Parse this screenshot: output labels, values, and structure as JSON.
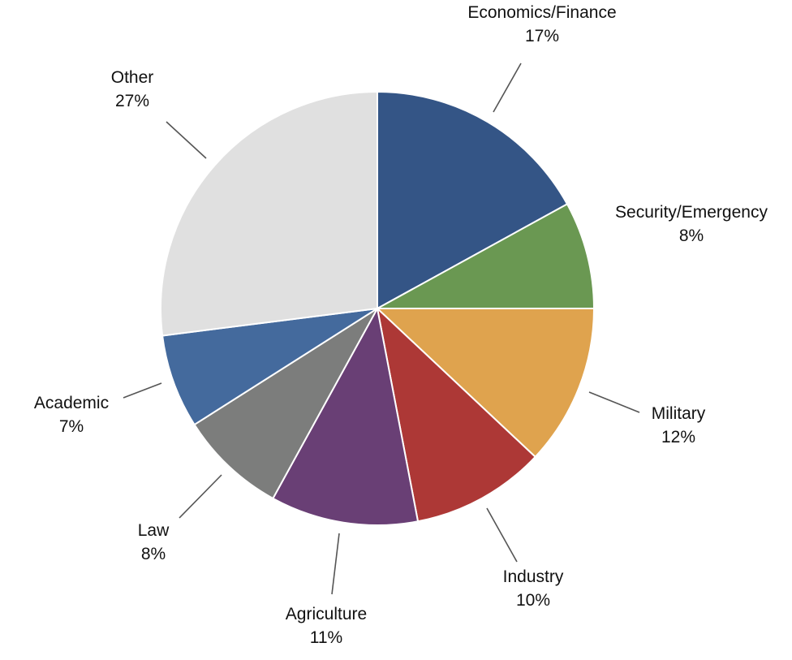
{
  "chart_data": {
    "type": "pie",
    "start_angle_deg": 0,
    "direction": "clockwise",
    "slices": [
      {
        "label": "Economics/Finance",
        "pct_label": "17%",
        "value": 17,
        "color": "#345586"
      },
      {
        "label": "Security/Emergency",
        "pct_label": "8%",
        "value": 8,
        "color": "#6a9852"
      },
      {
        "label": "Military",
        "pct_label": "12%",
        "value": 12,
        "color": "#dfa34e"
      },
      {
        "label": "Industry",
        "pct_label": "10%",
        "value": 10,
        "color": "#ad3836"
      },
      {
        "label": "Agriculture",
        "pct_label": "11%",
        "value": 11,
        "color": "#693f75"
      },
      {
        "label": "Law",
        "pct_label": "8%",
        "value": 8,
        "color": "#7c7d7c"
      },
      {
        "label": "Academic",
        "pct_label": "7%",
        "value": 7,
        "color": "#446a9d"
      },
      {
        "label": "Other",
        "pct_label": "27%",
        "value": 27,
        "color": "#e0e0e0"
      }
    ]
  }
}
